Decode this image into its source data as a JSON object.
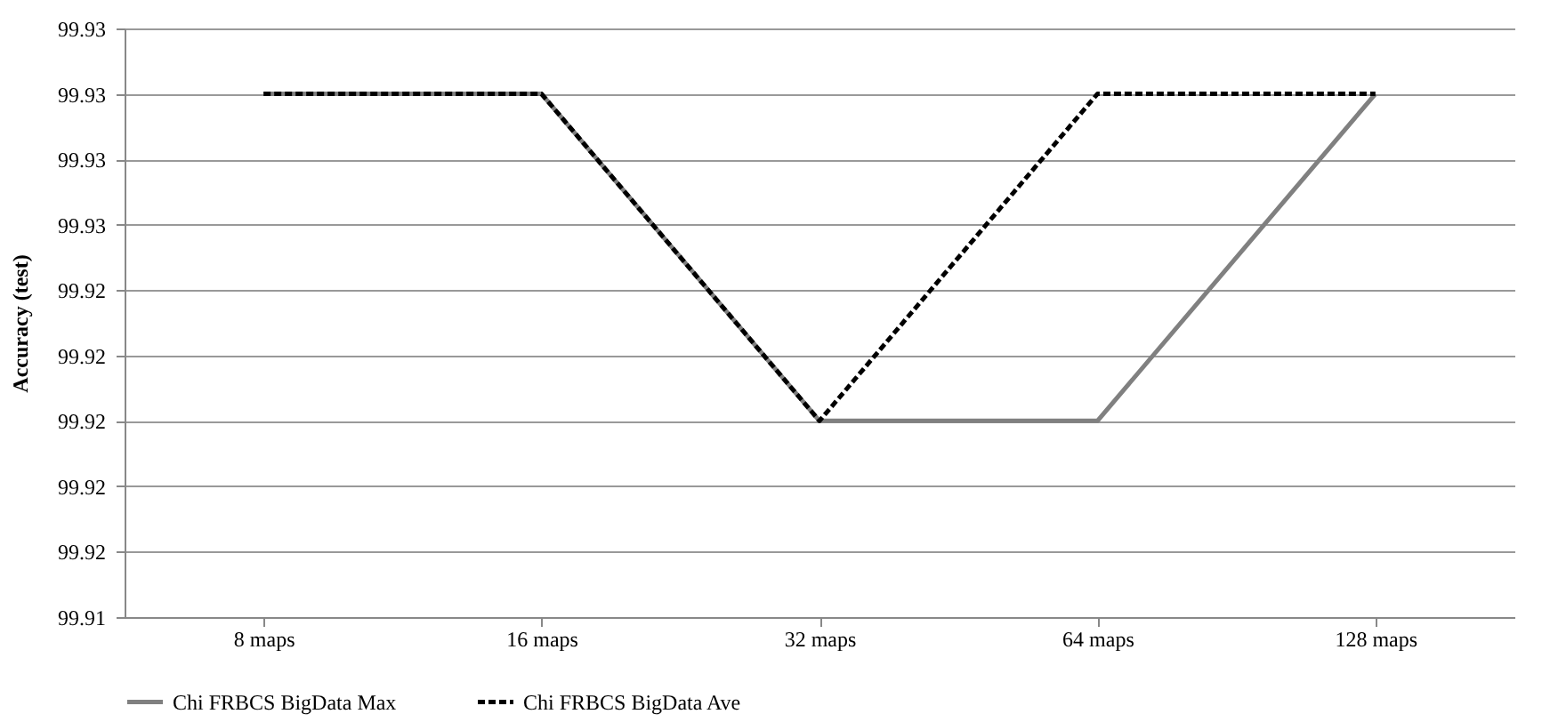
{
  "chart_data": {
    "type": "line",
    "ylabel": "Accuracy (test)",
    "categories": [
      "8 maps",
      "16 maps",
      "32 maps",
      "64 maps",
      "128 maps"
    ],
    "series": [
      {
        "name": "Chi FRBCS BigData Max",
        "color": "#808080",
        "line_style": "solid",
        "values": [
          99.93,
          99.93,
          99.92,
          99.92,
          99.93
        ]
      },
      {
        "name": "Chi FRBCS BigData Ave",
        "color": "#000000",
        "line_style": "dashed",
        "values": [
          99.93,
          99.93,
          99.92,
          99.93,
          99.93
        ]
      }
    ],
    "ylim": [
      99.914,
      99.932
    ],
    "yticks": [
      {
        "value": 99.914,
        "label": "99.91"
      },
      {
        "value": 99.916,
        "label": "99.92"
      },
      {
        "value": 99.918,
        "label": "99.92"
      },
      {
        "value": 99.92,
        "label": "99.92"
      },
      {
        "value": 99.922,
        "label": "99.92"
      },
      {
        "value": 99.924,
        "label": "99.92"
      },
      {
        "value": 99.926,
        "label": "99.93"
      },
      {
        "value": 99.928,
        "label": "99.93"
      },
      {
        "value": 99.93,
        "label": "99.93"
      },
      {
        "value": 99.932,
        "label": "99.93"
      }
    ],
    "grid": "y",
    "legend": "bottom",
    "marker": "none"
  }
}
